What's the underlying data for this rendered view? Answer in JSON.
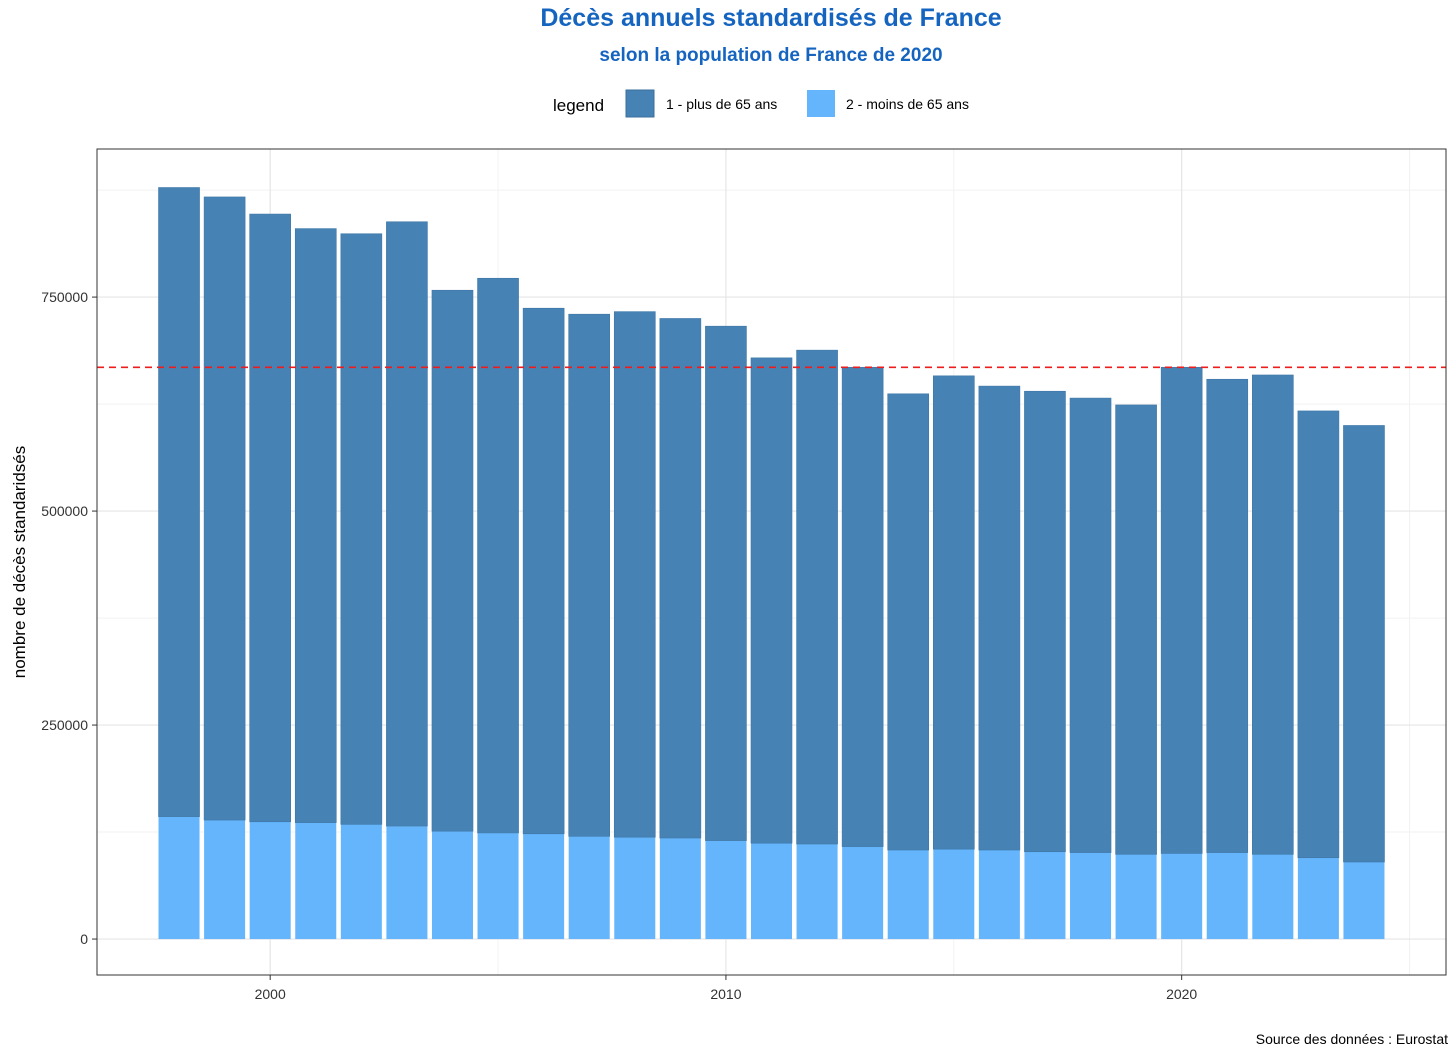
{
  "chart_data": {
    "type": "bar",
    "stacked": true,
    "title": "Décès annuels standardisés de France",
    "subtitle": "selon la population de France de 2020",
    "ylabel": "nombre de décès standaridsés",
    "xlabel": "",
    "legend": {
      "title": "legend",
      "placement": "top"
    },
    "caption": "Source des données : Eurostat",
    "x_ticks": [
      "2000",
      "2010",
      "2020"
    ],
    "y_ticks": [
      "0",
      "250000",
      "500000",
      "750000"
    ],
    "xlim": [
      1996.2,
      2025.8
    ],
    "ylim": [
      -42000,
      923000
    ],
    "grid": true,
    "reference_line": {
      "y": 668000,
      "color": "#ee1c1c",
      "style": "dashed"
    },
    "categories": [
      1998,
      1999,
      2000,
      2001,
      2002,
      2003,
      2004,
      2005,
      2006,
      2007,
      2008,
      2009,
      2010,
      2011,
      2012,
      2013,
      2014,
      2015,
      2016,
      2017,
      2018,
      2019,
      2020,
      2021,
      2022,
      2023,
      2024
    ],
    "series": [
      {
        "name": "2 - moins de 65 ans",
        "color": "#64b5fc",
        "values": [
          143000,
          139000,
          137000,
          136000,
          134000,
          132000,
          126000,
          124000,
          123000,
          120000,
          119000,
          118000,
          115000,
          112000,
          111000,
          108000,
          104000,
          105000,
          104000,
          102000,
          101000,
          99000,
          100000,
          101000,
          99000,
          95000,
          90000
        ]
      },
      {
        "name": "1 - plus de 65 ans",
        "color": "#4682b4",
        "values": [
          735000,
          728000,
          710000,
          694000,
          690000,
          706000,
          632000,
          648000,
          614000,
          610000,
          614000,
          607000,
          601000,
          567000,
          577000,
          560000,
          533000,
          553000,
          542000,
          538000,
          531000,
          525000,
          568000,
          553000,
          560000,
          522000,
          510000
        ]
      }
    ]
  }
}
